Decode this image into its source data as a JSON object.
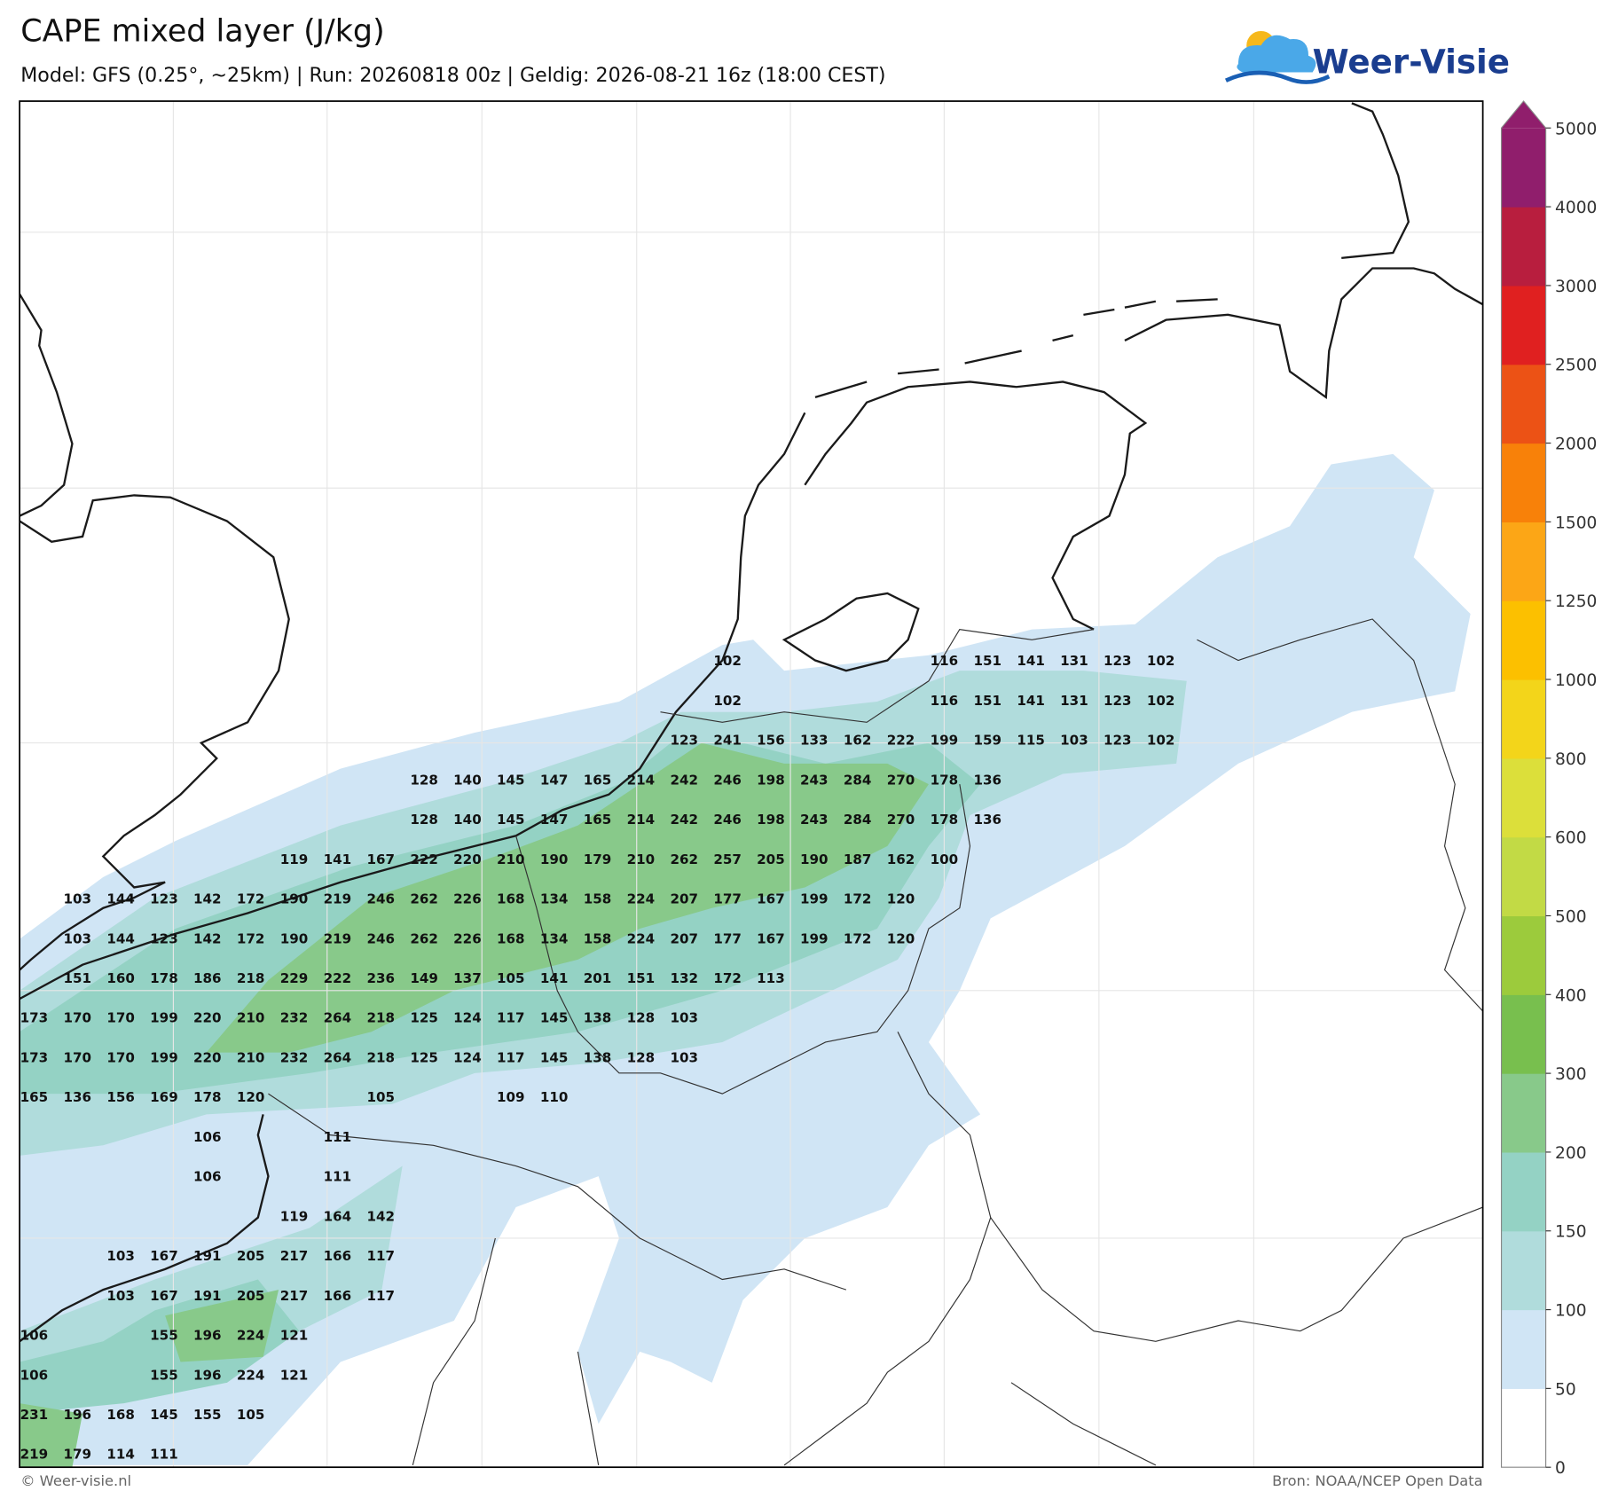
{
  "header": {
    "title": "CAPE mixed layer (J/kg)",
    "subtitle": "Model: GFS (0.25°, ~25km)  |  Run: 20260818 00z  |  Geldig: 2026-08-21 16z (18:00 CEST)"
  },
  "logo": {
    "text": "Weer-Visie"
  },
  "map": {
    "rows": [
      [
        null,
        null,
        null,
        null,
        null,
        null,
        null,
        null,
        null,
        null,
        null,
        null,
        null,
        null,
        null,
        null,
        102,
        null,
        null,
        null,
        null,
        116,
        151,
        141,
        131,
        123,
        102
      ],
      [
        null,
        null,
        null,
        null,
        null,
        null,
        null,
        null,
        null,
        null,
        null,
        null,
        null,
        null,
        null,
        null,
        102,
        null,
        null,
        null,
        null,
        116,
        151,
        141,
        131,
        123,
        102
      ],
      [
        null,
        null,
        null,
        null,
        null,
        null,
        null,
        null,
        null,
        null,
        null,
        null,
        null,
        null,
        null,
        123,
        241,
        156,
        133,
        162,
        222,
        199,
        159,
        115,
        103,
        123,
        102
      ],
      [
        null,
        null,
        null,
        null,
        null,
        null,
        null,
        null,
        null,
        128,
        140,
        145,
        147,
        165,
        214,
        242,
        246,
        198,
        243,
        284,
        270,
        178,
        136
      ],
      [
        null,
        null,
        null,
        null,
        null,
        null,
        null,
        null,
        null,
        128,
        140,
        145,
        147,
        165,
        214,
        242,
        246,
        198,
        243,
        284,
        270,
        178,
        136
      ],
      [
        null,
        null,
        null,
        null,
        null,
        null,
        119,
        141,
        167,
        222,
        220,
        210,
        190,
        179,
        210,
        262,
        257,
        205,
        190,
        187,
        162,
        100
      ],
      [
        null,
        103,
        144,
        123,
        142,
        172,
        190,
        219,
        246,
        262,
        226,
        168,
        134,
        158,
        224,
        207,
        177,
        167,
        199,
        172,
        120
      ],
      [
        null,
        103,
        144,
        123,
        142,
        172,
        190,
        219,
        246,
        262,
        226,
        168,
        134,
        158,
        224,
        207,
        177,
        167,
        199,
        172,
        120
      ],
      [
        null,
        151,
        160,
        178,
        186,
        218,
        229,
        222,
        236,
        149,
        137,
        105,
        141,
        201,
        151,
        132,
        172,
        113
      ],
      [
        173,
        170,
        170,
        199,
        220,
        210,
        232,
        264,
        218,
        125,
        124,
        117,
        145,
        138,
        128,
        103
      ],
      [
        173,
        170,
        170,
        199,
        220,
        210,
        232,
        264,
        218,
        125,
        124,
        117,
        145,
        138,
        128,
        103
      ],
      [
        165,
        136,
        156,
        169,
        178,
        120,
        null,
        null,
        105,
        null,
        null,
        109,
        110
      ],
      [
        null,
        null,
        null,
        null,
        106,
        null,
        null,
        111
      ],
      [
        null,
        null,
        null,
        null,
        106,
        null,
        null,
        111
      ],
      [
        null,
        null,
        null,
        null,
        null,
        null,
        119,
        164,
        142
      ],
      [
        null,
        null,
        103,
        167,
        191,
        205,
        217,
        166,
        117
      ],
      [
        null,
        null,
        103,
        167,
        191,
        205,
        217,
        166,
        117
      ],
      [
        106,
        null,
        null,
        155,
        196,
        224,
        121
      ],
      [
        106,
        null,
        null,
        155,
        196,
        224,
        121
      ],
      [
        231,
        196,
        168,
        145,
        155,
        105
      ],
      [
        219,
        179,
        114,
        111
      ]
    ]
  },
  "colorbar": {
    "ticks": [
      0,
      50,
      100,
      150,
      200,
      300,
      400,
      500,
      600,
      800,
      1000,
      1250,
      1500,
      2000,
      2500,
      3000,
      4000,
      5000
    ],
    "colors": [
      "#ffffff",
      "#d0e5f5",
      "#b0dcdc",
      "#94d2c4",
      "#88c98a",
      "#78bf4e",
      "#9ccb3c",
      "#c2da45",
      "#dcdf3a",
      "#f3d51a",
      "#fcc000",
      "#fca616",
      "#f88109",
      "#ec5215",
      "#e02020",
      "#b81e3e",
      "#901e6c"
    ],
    "extend_color": "#901e6c"
  },
  "footer": {
    "left": "© Weer-visie.nl",
    "right": "Bron: NOAA/NCEP Open Data"
  }
}
